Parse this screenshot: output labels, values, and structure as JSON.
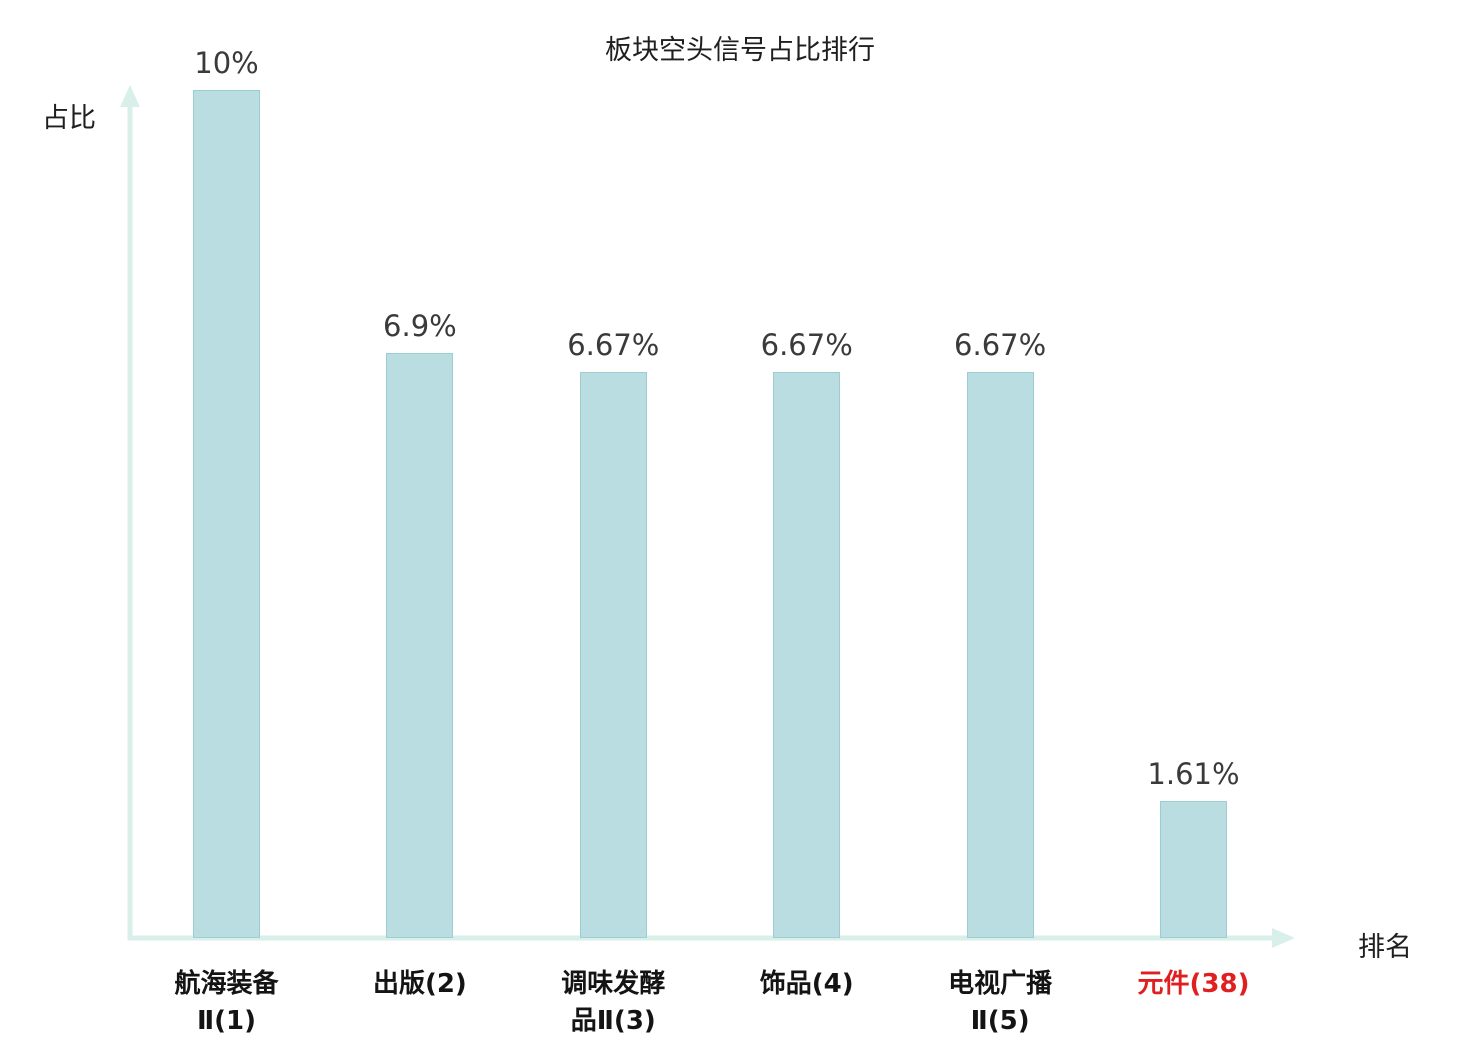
{
  "chart": {
    "title": "板块空头信号占比排行",
    "ylabel": "占比",
    "xlabel": "排名"
  },
  "chart_data": {
    "type": "bar",
    "title": "板块空头信号占比排行",
    "xlabel": "排名",
    "ylabel": "占比",
    "ylim": [
      0,
      10
    ],
    "grid": false,
    "legend": "none",
    "bar_color": "#b9dde1",
    "bar_border_color": "#9ccdd3",
    "axis_color": "#d9efe9",
    "text_color": "#3a3a3a",
    "highlight_color": "#e02020",
    "categories": [
      {
        "label_lines": [
          "航海装备",
          "Ⅱ(1)"
        ],
        "value": 10,
        "value_label": "10%",
        "highlight": false
      },
      {
        "label_lines": [
          "出版(2)"
        ],
        "value": 6.9,
        "value_label": "6.9%",
        "highlight": false
      },
      {
        "label_lines": [
          "调味发酵",
          "品Ⅱ(3)"
        ],
        "value": 6.67,
        "value_label": "6.67%",
        "highlight": false
      },
      {
        "label_lines": [
          "饰品(4)"
        ],
        "value": 6.67,
        "value_label": "6.67%",
        "highlight": false
      },
      {
        "label_lines": [
          "电视广播",
          "Ⅱ(5)"
        ],
        "value": 6.67,
        "value_label": "6.67%",
        "highlight": false
      },
      {
        "label_lines": [
          "元件(38)"
        ],
        "value": 1.61,
        "value_label": "1.61%",
        "highlight": true
      }
    ]
  }
}
